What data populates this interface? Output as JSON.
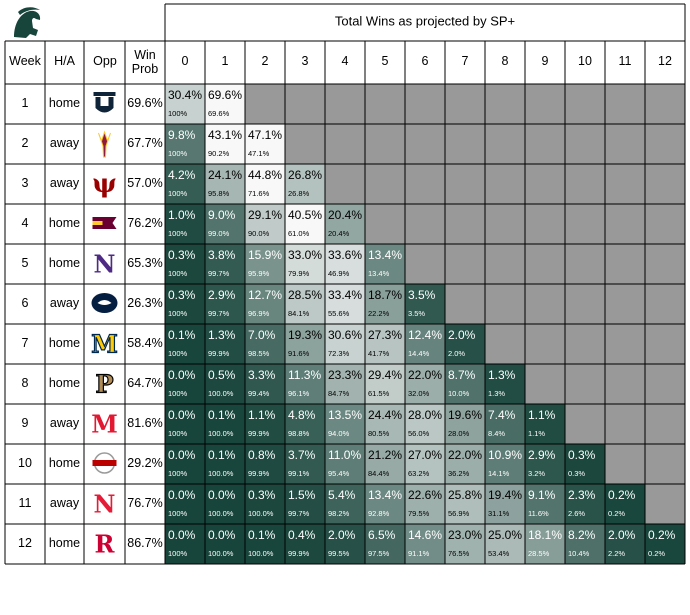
{
  "title": "Total Wins as projected by SP+",
  "headers": {
    "week": "Week",
    "ha": "H/A",
    "opp": "Opp",
    "win_prob_line1": "Win",
    "win_prob_line2": "Prob"
  },
  "logo_icon": "msu-spartan-helmet-icon",
  "colors": {
    "dark_green": "#18453b",
    "gray": "#999999",
    "border": "#000000"
  },
  "chart_data": {
    "type": "table",
    "title": "Total Wins as projected by SP+",
    "win_columns": [
      "0",
      "1",
      "2",
      "3",
      "4",
      "5",
      "6",
      "7",
      "8",
      "9",
      "10",
      "11",
      "12"
    ],
    "rows": [
      {
        "week": "1",
        "ha": "home",
        "opp_icon": "usu-logo-icon",
        "opp_color": "#0f2439",
        "win_prob": "69.6%",
        "cells": [
          [
            "30.4%",
            "100%"
          ],
          [
            "69.6%",
            "69.6%"
          ]
        ]
      },
      {
        "week": "2",
        "ha": "away",
        "opp_icon": "asu-pitchfork-icon",
        "opp_color": "#8c1d40",
        "win_prob": "67.7%",
        "cells": [
          [
            "9.8%",
            "100%"
          ],
          [
            "43.1%",
            "90.2%"
          ],
          [
            "47.1%",
            "47.1%"
          ]
        ]
      },
      {
        "week": "3",
        "ha": "away",
        "opp_icon": "indiana-logo-icon",
        "opp_color": "#990000",
        "win_prob": "57.0%",
        "cells": [
          [
            "4.2%",
            "100%"
          ],
          [
            "24.1%",
            "95.8%"
          ],
          [
            "44.8%",
            "71.6%"
          ],
          [
            "26.8%",
            "26.8%"
          ]
        ]
      },
      {
        "week": "4",
        "ha": "home",
        "opp_icon": "cmu-logo-icon",
        "opp_color": "#6a0032",
        "win_prob": "76.2%",
        "cells": [
          [
            "1.0%",
            "100%"
          ],
          [
            "9.0%",
            "99.0%"
          ],
          [
            "29.1%",
            "90.0%"
          ],
          [
            "40.5%",
            "61.0%"
          ],
          [
            "20.4%",
            "20.4%"
          ]
        ]
      },
      {
        "week": "5",
        "ha": "home",
        "opp_icon": "northwestern-n-icon",
        "opp_color": "#4e2a84",
        "win_prob": "65.3%",
        "cells": [
          [
            "0.3%",
            "100%"
          ],
          [
            "3.8%",
            "99.7%"
          ],
          [
            "15.9%",
            "95.9%"
          ],
          [
            "33.0%",
            "79.9%"
          ],
          [
            "33.6%",
            "46.9%"
          ],
          [
            "13.4%",
            "13.4%"
          ]
        ]
      },
      {
        "week": "6",
        "ha": "away",
        "opp_icon": "penn-state-lion-icon",
        "opp_color": "#041e42",
        "win_prob": "26.3%",
        "cells": [
          [
            "0.3%",
            "100%"
          ],
          [
            "2.9%",
            "99.7%"
          ],
          [
            "12.7%",
            "96.9%"
          ],
          [
            "28.5%",
            "84.1%"
          ],
          [
            "33.4%",
            "55.6%"
          ],
          [
            "18.7%",
            "22.2%"
          ],
          [
            "3.5%",
            "3.5%"
          ]
        ]
      },
      {
        "week": "7",
        "ha": "home",
        "opp_icon": "michigan-m-icon",
        "opp_color": "#ffcb05",
        "win_prob": "58.4%",
        "cells": [
          [
            "0.1%",
            "100%"
          ],
          [
            "1.3%",
            "99.9%"
          ],
          [
            "7.0%",
            "98.5%"
          ],
          [
            "19.3%",
            "91.6%"
          ],
          [
            "30.6%",
            "72.3%"
          ],
          [
            "27.3%",
            "41.7%"
          ],
          [
            "12.4%",
            "14.4%"
          ],
          [
            "2.0%",
            "2.0%"
          ]
        ]
      },
      {
        "week": "8",
        "ha": "home",
        "opp_icon": "purdue-p-icon",
        "opp_color": "#b08d57",
        "win_prob": "64.7%",
        "cells": [
          [
            "0.0%",
            "100%"
          ],
          [
            "0.5%",
            "100.0%"
          ],
          [
            "3.3%",
            "99.4%"
          ],
          [
            "11.3%",
            "96.1%"
          ],
          [
            "23.3%",
            "84.7%"
          ],
          [
            "29.4%",
            "61.5%"
          ],
          [
            "22.0%",
            "32.0%"
          ],
          [
            "8.7%",
            "10.0%"
          ],
          [
            "1.3%",
            "1.3%"
          ]
        ]
      },
      {
        "week": "9",
        "ha": "away",
        "opp_icon": "maryland-m-icon",
        "opp_color": "#e21833",
        "win_prob": "81.6%",
        "cells": [
          [
            "0.0%",
            "100%"
          ],
          [
            "0.1%",
            "100.0%"
          ],
          [
            "1.1%",
            "99.9%"
          ],
          [
            "4.8%",
            "98.8%"
          ],
          [
            "13.5%",
            "94.0%"
          ],
          [
            "24.4%",
            "80.5%"
          ],
          [
            "28.0%",
            "56.0%"
          ],
          [
            "19.6%",
            "28.0%"
          ],
          [
            "7.4%",
            "8.4%"
          ],
          [
            "1.1%",
            "1.1%"
          ]
        ]
      },
      {
        "week": "10",
        "ha": "home",
        "opp_icon": "ohio-state-icon",
        "opp_color": "#bb0000",
        "win_prob": "29.2%",
        "cells": [
          [
            "0.0%",
            "100%"
          ],
          [
            "0.1%",
            "100.0%"
          ],
          [
            "0.8%",
            "99.9%"
          ],
          [
            "3.7%",
            "99.1%"
          ],
          [
            "11.0%",
            "95.4%"
          ],
          [
            "21.2%",
            "84.4%"
          ],
          [
            "27.0%",
            "63.2%"
          ],
          [
            "22.0%",
            "36.2%"
          ],
          [
            "10.9%",
            "14.1%"
          ],
          [
            "2.9%",
            "3.2%"
          ],
          [
            "0.3%",
            "0.3%"
          ]
        ]
      },
      {
        "week": "11",
        "ha": "away",
        "opp_icon": "nebraska-n-icon",
        "opp_color": "#e41c38",
        "win_prob": "76.7%",
        "cells": [
          [
            "0.0%",
            "100%"
          ],
          [
            "0.0%",
            "100.0%"
          ],
          [
            "0.3%",
            "100.0%"
          ],
          [
            "1.5%",
            "99.7%"
          ],
          [
            "5.4%",
            "98.2%"
          ],
          [
            "13.4%",
            "92.8%"
          ],
          [
            "22.6%",
            "79.5%"
          ],
          [
            "25.8%",
            "56.9%"
          ],
          [
            "19.4%",
            "31.1%"
          ],
          [
            "9.1%",
            "11.6%"
          ],
          [
            "2.3%",
            "2.6%"
          ],
          [
            "0.2%",
            "0.2%"
          ]
        ]
      },
      {
        "week": "12",
        "ha": "home",
        "opp_icon": "rutgers-r-icon",
        "opp_color": "#cc0033",
        "win_prob": "86.7%",
        "cells": [
          [
            "0.0%",
            "100%"
          ],
          [
            "0.0%",
            "100.0%"
          ],
          [
            "0.1%",
            "100.0%"
          ],
          [
            "0.4%",
            "99.9%"
          ],
          [
            "2.0%",
            "99.5%"
          ],
          [
            "6.5%",
            "97.5%"
          ],
          [
            "14.6%",
            "91.1%"
          ],
          [
            "23.0%",
            "76.5%"
          ],
          [
            "25.0%",
            "53.4%"
          ],
          [
            "18.1%",
            "28.5%"
          ],
          [
            "8.2%",
            "10.4%"
          ],
          [
            "2.0%",
            "2.2%"
          ],
          [
            "0.2%",
            "0.2%"
          ]
        ]
      }
    ]
  }
}
